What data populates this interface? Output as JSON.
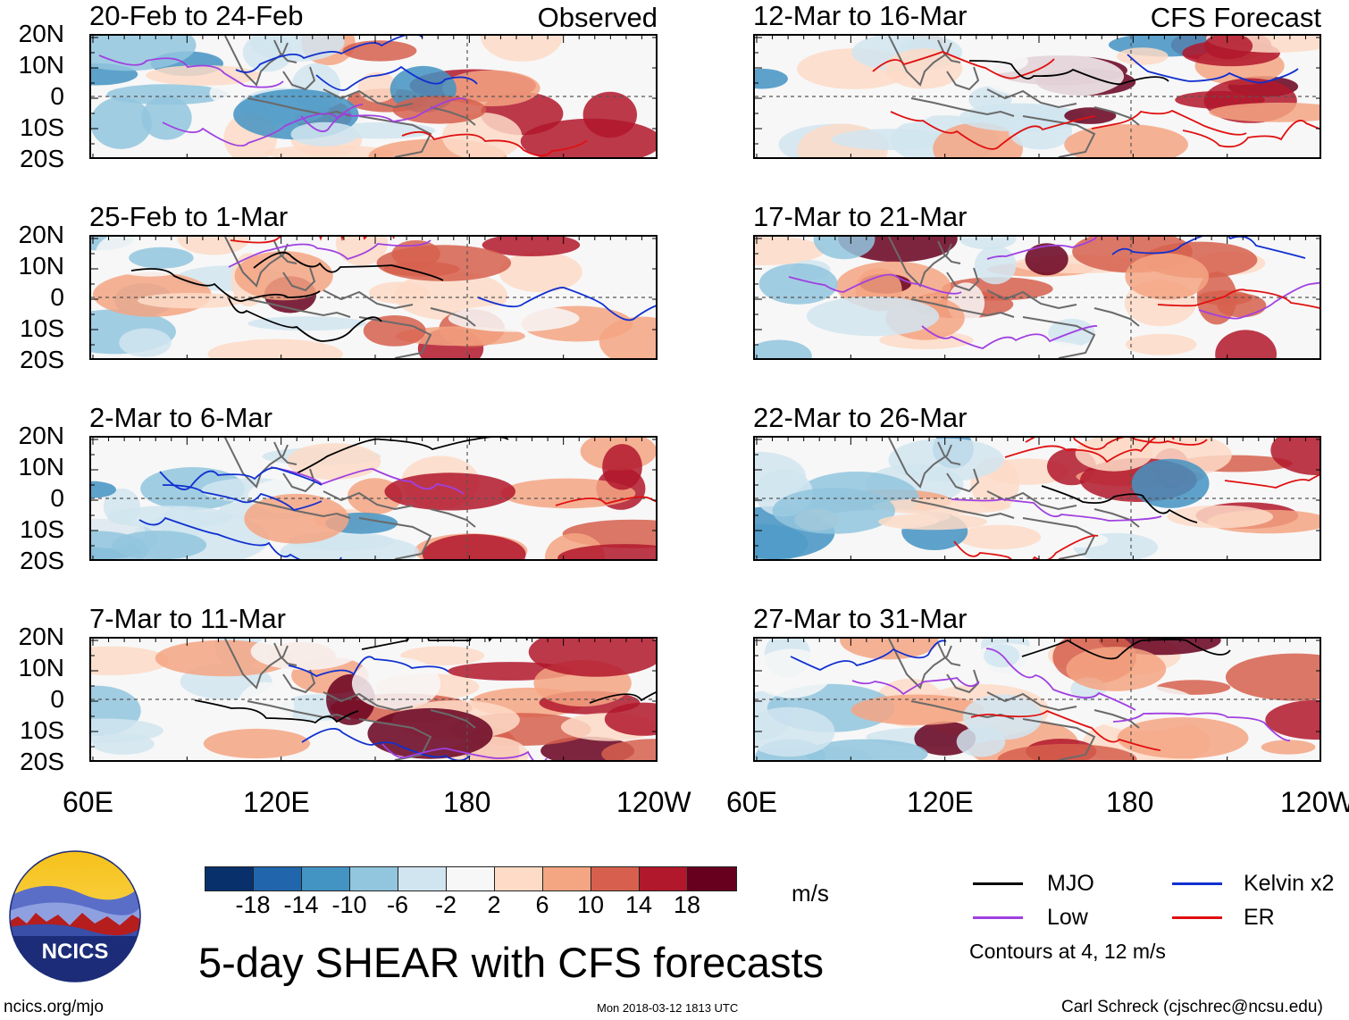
{
  "title": "5-day SHEAR with CFS forecasts",
  "columns": [
    {
      "header": "Observed"
    },
    {
      "header": "CFS Forecast"
    }
  ],
  "panels": [
    {
      "period": "20-Feb to 24-Feb",
      "column": 0,
      "row": 0
    },
    {
      "period": "25-Feb to 1-Mar",
      "column": 0,
      "row": 1
    },
    {
      "period": "2-Mar to 6-Mar",
      "column": 0,
      "row": 2
    },
    {
      "period": "7-Mar to 11-Mar",
      "column": 0,
      "row": 3
    },
    {
      "period": "12-Mar to 16-Mar",
      "column": 1,
      "row": 0
    },
    {
      "period": "17-Mar to 21-Mar",
      "column": 1,
      "row": 1
    },
    {
      "period": "22-Mar to 26-Mar",
      "column": 1,
      "row": 2
    },
    {
      "period": "27-Mar to 31-Mar",
      "column": 1,
      "row": 3
    }
  ],
  "axes": {
    "lat_labels": [
      "20N",
      "10N",
      "0",
      "10S",
      "20S"
    ],
    "lon_labels": [
      "60E",
      "120E",
      "180",
      "120W"
    ],
    "lat_range": [
      -20,
      20
    ],
    "lon_range": [
      60,
      240
    ]
  },
  "colorbar": {
    "units": "m/s",
    "tick_labels": [
      "-18",
      "-14",
      "-10",
      "-6",
      "-2",
      "2",
      "6",
      "10",
      "14",
      "18"
    ],
    "colors": [
      "#08306b",
      "#2166ac",
      "#4393c3",
      "#92c5de",
      "#d1e5f0",
      "#f7f7f7",
      "#fddbc7",
      "#f4a582",
      "#d6604d",
      "#b2182b",
      "#67001f"
    ]
  },
  "legend": {
    "items": [
      {
        "label": "MJO",
        "color": "#000000"
      },
      {
        "label": "Low",
        "color": "#a040e0"
      },
      {
        "label": "Kelvin x2",
        "color": "#1030d0"
      },
      {
        "label": "ER",
        "color": "#e01010"
      }
    ],
    "note": "Contours at 4, 12 m/s"
  },
  "logo": {
    "text": "NCICS"
  },
  "footer": {
    "left": "ncics.org/mjo",
    "center": "Mon 2018-03-12 1813 UTC",
    "right": "Carl Schreck (cjschrec@ncsu.edu)"
  }
}
